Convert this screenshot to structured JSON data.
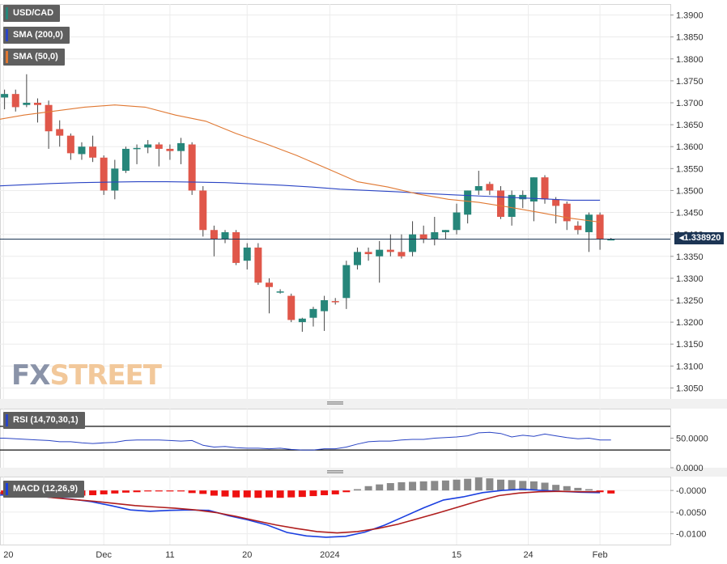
{
  "legends": {
    "symbol": "USD/CAD",
    "sma200": "SMA (200,0)",
    "sma50": "SMA (50,0)",
    "rsi": "RSI (14,70,30,1)",
    "macd": "MACD (12,26,9)"
  },
  "last_price_label": "1.338920",
  "watermark": {
    "part1": "FX",
    "part2": "STREET"
  },
  "colors": {
    "up": "#26867a",
    "down": "#e0574a",
    "sma200": "#2a44c4",
    "sma50": "#e07832",
    "macd_line": "#1a3fe0",
    "signal_line": "#b01e1e",
    "hist_pos": "#8a8a8a",
    "hist_neg": "#ee1111",
    "rsi_line": "#2a44c4"
  },
  "chart_data": [
    {
      "type": "candlestick",
      "title": "USD/CAD",
      "x_ticks": [
        "20",
        "Dec",
        "11",
        "20",
        "2024",
        "15",
        "24",
        "Feb"
      ],
      "y_ticks": [
        "1.3900",
        "1.3850",
        "1.3800",
        "1.3750",
        "1.3700",
        "1.3650",
        "1.3600",
        "1.3550",
        "1.3500",
        "1.3450",
        "1.3400",
        "1.3350",
        "1.3300",
        "1.3250",
        "1.3200",
        "1.3150",
        "1.3100",
        "1.3050"
      ],
      "ylim": [
        1.3025,
        1.3925
      ],
      "last_price": 1.33892,
      "ohlc": [
        [
          1.373,
          1.3745,
          1.3705,
          1.371
        ],
        [
          1.3712,
          1.373,
          1.3685,
          1.372
        ],
        [
          1.372,
          1.373,
          1.368,
          1.369
        ],
        [
          1.3695,
          1.3765,
          1.369,
          1.37
        ],
        [
          1.37,
          1.371,
          1.3655,
          1.3695
        ],
        [
          1.3695,
          1.3705,
          1.3595,
          1.3635
        ],
        [
          1.364,
          1.366,
          1.36,
          1.3625
        ],
        [
          1.3625,
          1.363,
          1.357,
          1.3585
        ],
        [
          1.3583,
          1.361,
          1.357,
          1.36
        ],
        [
          1.36,
          1.3625,
          1.3565,
          1.3575
        ],
        [
          1.3575,
          1.358,
          1.349,
          1.35
        ],
        [
          1.35,
          1.357,
          1.348,
          1.355
        ],
        [
          1.3545,
          1.36,
          1.354,
          1.3595
        ],
        [
          1.3596,
          1.3605,
          1.356,
          1.3597
        ],
        [
          1.3598,
          1.3615,
          1.3585,
          1.3605
        ],
        [
          1.3605,
          1.361,
          1.3555,
          1.3595
        ],
        [
          1.3595,
          1.3605,
          1.357,
          1.359
        ],
        [
          1.359,
          1.362,
          1.356,
          1.3608
        ],
        [
          1.3605,
          1.361,
          1.349,
          1.35
        ],
        [
          1.35,
          1.351,
          1.3395,
          1.341
        ],
        [
          1.341,
          1.342,
          1.335,
          1.339
        ],
        [
          1.339,
          1.341,
          1.338,
          1.3405
        ],
        [
          1.3405,
          1.341,
          1.333,
          1.3335
        ],
        [
          1.334,
          1.338,
          1.332,
          1.337
        ],
        [
          1.337,
          1.338,
          1.3285,
          1.329
        ],
        [
          1.329,
          1.33,
          1.322,
          1.328
        ],
        [
          1.327,
          1.3275,
          1.3265,
          1.327
        ],
        [
          1.326,
          1.3265,
          1.32,
          1.3205
        ],
        [
          1.32,
          1.321,
          1.3178,
          1.3208
        ],
        [
          1.321,
          1.3235,
          1.319,
          1.323
        ],
        [
          1.3225,
          1.326,
          1.318,
          1.325
        ],
        [
          1.3248,
          1.3255,
          1.324,
          1.3247
        ],
        [
          1.3255,
          1.334,
          1.323,
          1.333
        ],
        [
          1.333,
          1.337,
          1.332,
          1.336
        ],
        [
          1.336,
          1.337,
          1.334,
          1.3355
        ],
        [
          1.335,
          1.3385,
          1.329,
          1.3365
        ],
        [
          1.3365,
          1.34,
          1.335,
          1.336
        ],
        [
          1.336,
          1.34,
          1.3345,
          1.335
        ],
        [
          1.336,
          1.343,
          1.335,
          1.34
        ],
        [
          1.34,
          1.342,
          1.338,
          1.339
        ],
        [
          1.339,
          1.344,
          1.3375,
          1.3405
        ],
        [
          1.3405,
          1.341,
          1.339,
          1.341
        ],
        [
          1.341,
          1.347,
          1.34,
          1.345
        ],
        [
          1.3445,
          1.35,
          1.3425,
          1.35
        ],
        [
          1.35,
          1.3545,
          1.349,
          1.351
        ],
        [
          1.3515,
          1.352,
          1.349,
          1.35
        ],
        [
          1.35,
          1.351,
          1.3435,
          1.344
        ],
        [
          1.344,
          1.35,
          1.342,
          1.349
        ],
        [
          1.348,
          1.35,
          1.346,
          1.349
        ],
        [
          1.3475,
          1.353,
          1.343,
          1.353
        ],
        [
          1.353,
          1.3535,
          1.347,
          1.348
        ],
        [
          1.348,
          1.3485,
          1.3425,
          1.3465
        ],
        [
          1.347,
          1.3475,
          1.341,
          1.343
        ],
        [
          1.342,
          1.343,
          1.34,
          1.341
        ],
        [
          1.3405,
          1.345,
          1.336,
          1.3445
        ],
        [
          1.3445,
          1.345,
          1.3365,
          1.339
        ],
        [
          1.3389,
          1.3392,
          1.3388,
          1.3389
        ]
      ],
      "sma200": [
        1.351,
        1.3513,
        1.3516,
        1.3518,
        1.3519,
        1.352,
        1.352,
        1.3519,
        1.3518,
        1.3515,
        1.3512,
        1.3508,
        1.3503,
        1.35,
        1.3497,
        1.3493,
        1.349,
        1.3487,
        1.3484,
        1.3481,
        1.3478,
        1.3478
      ],
      "sma50": [
        1.366,
        1.3672,
        1.3681,
        1.369,
        1.3695,
        1.369,
        1.3672,
        1.3658,
        1.363,
        1.3606,
        1.358,
        1.355,
        1.352,
        1.3508,
        1.3492,
        1.348,
        1.3473,
        1.3462,
        1.345,
        1.3437,
        1.3428
      ]
    },
    {
      "type": "line",
      "title": "RSI (14,70,30,1)",
      "y_ticks": [
        "50.0000",
        "0.0000"
      ],
      "levels": [
        70,
        30
      ],
      "ylim": [
        0,
        100
      ],
      "values": [
        50,
        50,
        49,
        48,
        47,
        46,
        44,
        44,
        42,
        41,
        42,
        43,
        46,
        47,
        47,
        47,
        46,
        45,
        46,
        38,
        35,
        36,
        34,
        33,
        33,
        32,
        33,
        31,
        30,
        30,
        32,
        32,
        35,
        40,
        44,
        45,
        45,
        47,
        48,
        48,
        50,
        51,
        52,
        54,
        59,
        60,
        58,
        52,
        55,
        53,
        57,
        54,
        51,
        49,
        50,
        47,
        47
      ]
    },
    {
      "type": "bar",
      "title": "MACD (12,26,9)",
      "y_ticks": [
        "-0.0000",
        "-0.0050",
        "-0.0100"
      ],
      "ylim": [
        -0.0125,
        0.0032
      ],
      "histogram": [
        -0.001,
        -0.0009,
        -0.0009,
        -0.0008,
        -0.0008,
        -0.0009,
        -0.001,
        -0.0011,
        -0.0012,
        -0.0011,
        -0.0009,
        -0.0007,
        -0.0005,
        -0.0004,
        -0.0002,
        -0.0001,
        -0.0001,
        -0.0002,
        -0.0006,
        -0.0008,
        -0.0012,
        -0.0014,
        -0.0016,
        -0.0016,
        -0.0017,
        -0.0016,
        -0.0017,
        -0.0016,
        -0.0015,
        -0.0013,
        -0.0011,
        -0.0009,
        -0.0004,
        0.0003,
        0.001,
        0.0014,
        0.0017,
        0.0019,
        0.002,
        0.0021,
        0.0022,
        0.0023,
        0.0025,
        0.0027,
        0.003,
        0.0028,
        0.0025,
        0.0024,
        0.0022,
        0.0021,
        0.0018,
        0.0013,
        0.001,
        0.0006,
        0.0003,
        -0.0004,
        -0.0007
      ],
      "macd": [
        -0.001,
        -0.0011,
        -0.0013,
        -0.0016,
        -0.002,
        -0.0026,
        -0.0035,
        -0.0045,
        -0.0048,
        -0.0046,
        -0.0045,
        -0.0046,
        -0.0058,
        -0.0068,
        -0.008,
        -0.0097,
        -0.0105,
        -0.0108,
        -0.0106,
        -0.0096,
        -0.008,
        -0.006,
        -0.004,
        -0.0022,
        -0.0015,
        -0.0005,
        0.0,
        0.0003,
        0.0,
        -0.0002,
        -0.0004,
        -0.0005
      ],
      "signal": [
        -0.0005,
        -0.0008,
        -0.0012,
        -0.0017,
        -0.0021,
        -0.0025,
        -0.003,
        -0.0035,
        -0.0038,
        -0.0041,
        -0.0045,
        -0.0051,
        -0.006,
        -0.007,
        -0.008,
        -0.0088,
        -0.0095,
        -0.0098,
        -0.0095,
        -0.0088,
        -0.0078,
        -0.0065,
        -0.0052,
        -0.0038,
        -0.0024,
        -0.0012,
        -0.0006,
        -0.0003,
        -0.0002,
        -0.0003,
        -0.0003
      ]
    }
  ]
}
